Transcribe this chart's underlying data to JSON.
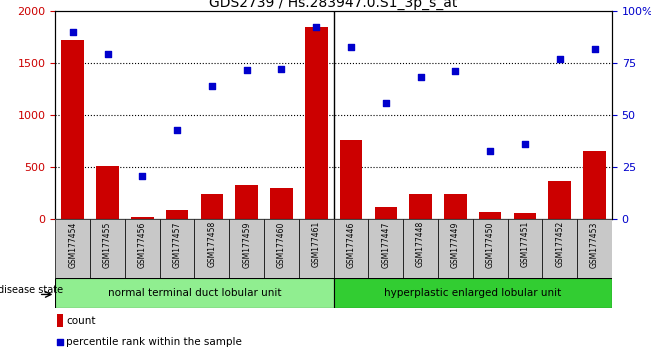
{
  "title": "GDS2739 / Hs.283947.0.S1_3p_s_at",
  "samples": [
    "GSM177454",
    "GSM177455",
    "GSM177456",
    "GSM177457",
    "GSM177458",
    "GSM177459",
    "GSM177460",
    "GSM177461",
    "GSM177446",
    "GSM177447",
    "GSM177448",
    "GSM177449",
    "GSM177450",
    "GSM177451",
    "GSM177452",
    "GSM177453"
  ],
  "counts": [
    1720,
    510,
    20,
    90,
    240,
    330,
    300,
    1840,
    760,
    120,
    240,
    240,
    75,
    60,
    370,
    660
  ],
  "percentiles": [
    90,
    79,
    21,
    43,
    64,
    71.5,
    72,
    92,
    82.5,
    56,
    68,
    71,
    33,
    36,
    77,
    81.5
  ],
  "group1_label": "normal terminal duct lobular unit",
  "group2_label": "hyperplastic enlarged lobular unit",
  "disease_state_label": "disease state",
  "ylim_left": [
    0,
    2000
  ],
  "ylim_right": [
    0,
    100
  ],
  "left_yticks": [
    0,
    500,
    1000,
    1500,
    2000
  ],
  "right_yticks": [
    0,
    25,
    50,
    75,
    100
  ],
  "right_yticklabels": [
    "0",
    "25",
    "50",
    "75",
    "100%"
  ],
  "bar_color": "#CC0000",
  "dot_color": "#0000CC",
  "group1_bg": "#90EE90",
  "group2_bg": "#32CD32",
  "tick_bg": "#C8C8C8",
  "legend_count_color": "#CC0000",
  "legend_dot_color": "#0000CC",
  "title_fontsize": 10,
  "tick_fontsize": 8
}
